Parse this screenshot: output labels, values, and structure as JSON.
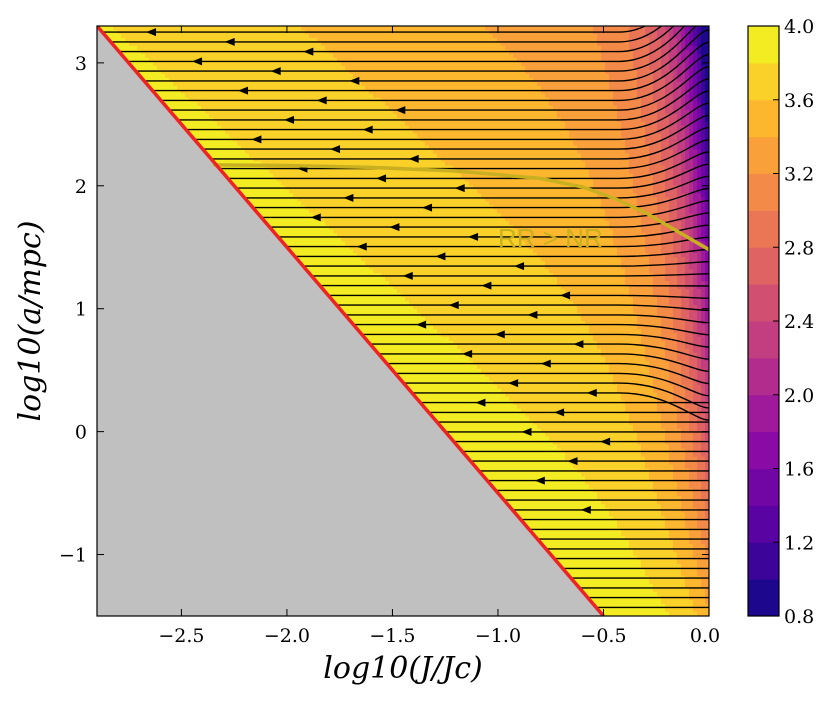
{
  "chart_data": {
    "type": "heatmap",
    "subtype": "filled contour with streamlines",
    "xlabel": "log10(J/Jc)",
    "ylabel": "log10(a/mpc)",
    "xlim": [
      -2.9,
      0.0
    ],
    "ylim": [
      -1.5,
      3.3
    ],
    "xticks": [
      -2.5,
      -2.0,
      -1.5,
      -1.0,
      -0.5,
      0.0
    ],
    "xtick_labels": [
      "−2.5",
      "−2.0",
      "−1.5",
      "−1.0",
      "−0.5",
      "0.0"
    ],
    "yticks": [
      -1,
      0,
      1,
      2,
      3
    ],
    "ytick_labels": [
      "−1",
      "0",
      "1",
      "2",
      "3"
    ],
    "colorbar": {
      "min": 0.8,
      "max": 4.0,
      "levels": 16,
      "ticks": [
        0.8,
        1.2,
        1.6,
        2.0,
        2.4,
        2.8,
        3.2,
        3.6,
        4.0
      ],
      "tick_labels": [
        "0.8",
        "1.2",
        "1.6",
        "2.0",
        "2.4",
        "2.8",
        "3.2",
        "3.6",
        "4.0"
      ],
      "colormap": "plasma"
    },
    "boundary_line": {
      "name": "loss cone boundary",
      "color": "#ee2222",
      "points": [
        [
          -2.9,
          3.3
        ],
        [
          -0.5,
          -1.5
        ]
      ]
    },
    "rr_nr_curve": {
      "label": "RR > NR",
      "color": "#c8b020",
      "x": [
        -2.35,
        -2.0,
        -1.6,
        -1.2,
        -0.8,
        -0.6,
        -0.45,
        -0.3,
        -0.15,
        0.0
      ],
      "y": [
        2.17,
        2.165,
        2.15,
        2.12,
        2.06,
        1.99,
        1.9,
        1.78,
        1.63,
        1.48
      ]
    },
    "streamlines": {
      "description": "flow arrows pointing toward the boundary (decreasing J)",
      "count": 60
    }
  }
}
